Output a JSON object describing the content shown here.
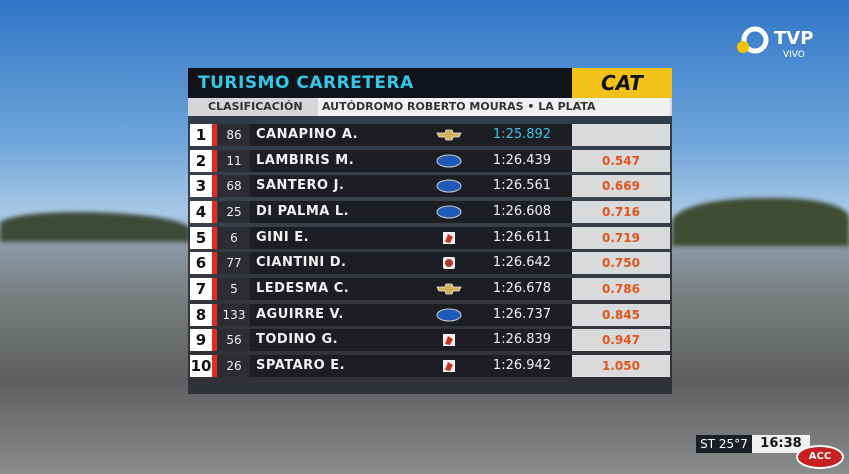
{
  "broadcaster": {
    "name": "TVP",
    "status": "VIVO"
  },
  "header": {
    "title": "TURISMO CARRETERA",
    "sponsor": "CAT",
    "session": "CLASIFICACIÓN",
    "venue": "AUTÓDROMO ROBERTO MOURAS • LA PLATA"
  },
  "table": {
    "rows": [
      {
        "pos": "1",
        "number": "86",
        "driver": "CANAPINO A.",
        "time": "1:25.892"
      },
      {
        "pos": "2",
        "number": "11",
        "driver": "LAMBIRIS M.",
        "time": "1:26.439",
        "gap": "0.547"
      },
      {
        "pos": "3",
        "number": "68",
        "driver": "SANTERO J.",
        "time": "1:26.561",
        "gap": "0.669"
      },
      {
        "pos": "4",
        "number": "25",
        "driver": "DI PALMA L.",
        "time": "1:26.608",
        "gap": "0.716"
      },
      {
        "pos": "5",
        "number": "6",
        "driver": "GINI E.",
        "time": "1:26.611",
        "gap": "0.719"
      },
      {
        "pos": "6",
        "number": "77",
        "driver": "CIANTINI D.",
        "time": "1:26.642",
        "gap": "0.750"
      },
      {
        "pos": "7",
        "number": "5",
        "driver": "LEDESMA C.",
        "time": "1:26.678",
        "gap": "0.786"
      },
      {
        "pos": "8",
        "number": "133",
        "driver": "AGUIRRE V.",
        "time": "1:26.737",
        "gap": "0.845"
      },
      {
        "pos": "9",
        "number": "56",
        "driver": "TODINO G.",
        "time": "1:26.839",
        "gap": "0.947"
      },
      {
        "pos": "10",
        "number": "26",
        "driver": "SPATARO E.",
        "time": "1:26.942",
        "gap": "1.050"
      }
    ]
  },
  "footer": {
    "temperature": "ST 25°7",
    "clock": "16:38",
    "logo": "ACC"
  }
}
